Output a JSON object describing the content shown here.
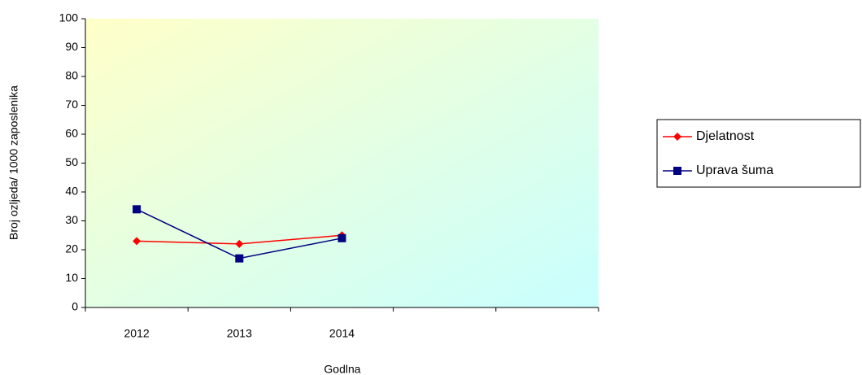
{
  "chart_data": {
    "type": "line",
    "categories": [
      "2012",
      "2013",
      "2014",
      null,
      null
    ],
    "series": [
      {
        "name": "Djelatnost",
        "color": "#ff0000",
        "values": [
          23,
          22,
          25,
          null,
          null
        ]
      },
      {
        "name": "Uprava šuma",
        "color": "#000080",
        "values": [
          34,
          17,
          24,
          null,
          null
        ]
      }
    ],
    "x_label": "Godlna",
    "y_label": "Broj ozljeda/ 1000 zaposlenika",
    "ylim": [
      0,
      100
    ],
    "yticks": [
      0,
      10,
      20,
      30,
      40,
      50,
      60,
      70,
      80,
      90,
      100
    ],
    "legend": "right"
  }
}
